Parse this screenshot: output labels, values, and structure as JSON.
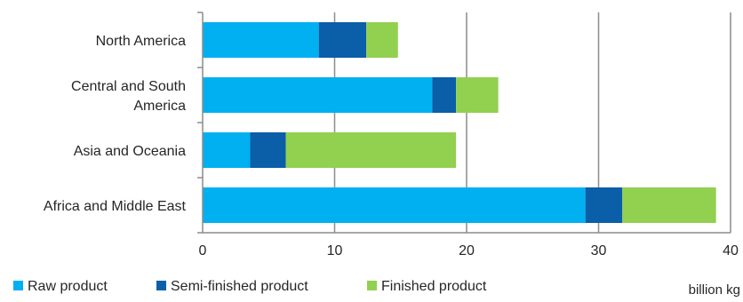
{
  "chart_data": {
    "type": "bar",
    "orientation": "horizontal",
    "stacked": true,
    "categories": [
      "North America",
      "Central and South America",
      "Asia and Oceania",
      "Africa and Middle East"
    ],
    "category_lines": [
      [
        "North America"
      ],
      [
        "Central and South",
        "America"
      ],
      [
        "Asia and Oceania"
      ],
      [
        "Africa and Middle East"
      ]
    ],
    "series": [
      {
        "name": "Raw product",
        "color": "#00b0f0",
        "values": [
          8.8,
          17.4,
          3.6,
          29.0
        ]
      },
      {
        "name": "Semi-finished product",
        "color": "#0b5ea8",
        "values": [
          3.6,
          1.8,
          2.7,
          2.8
        ]
      },
      {
        "name": "Finished product",
        "color": "#92d050",
        "values": [
          2.4,
          3.2,
          12.9,
          7.1
        ]
      }
    ],
    "x_ticks": [
      "0",
      "10",
      "20",
      "30",
      "40"
    ],
    "xlim": [
      0,
      40
    ],
    "unit_label": "billion kg",
    "grid": true,
    "legend_position": "bottom"
  }
}
